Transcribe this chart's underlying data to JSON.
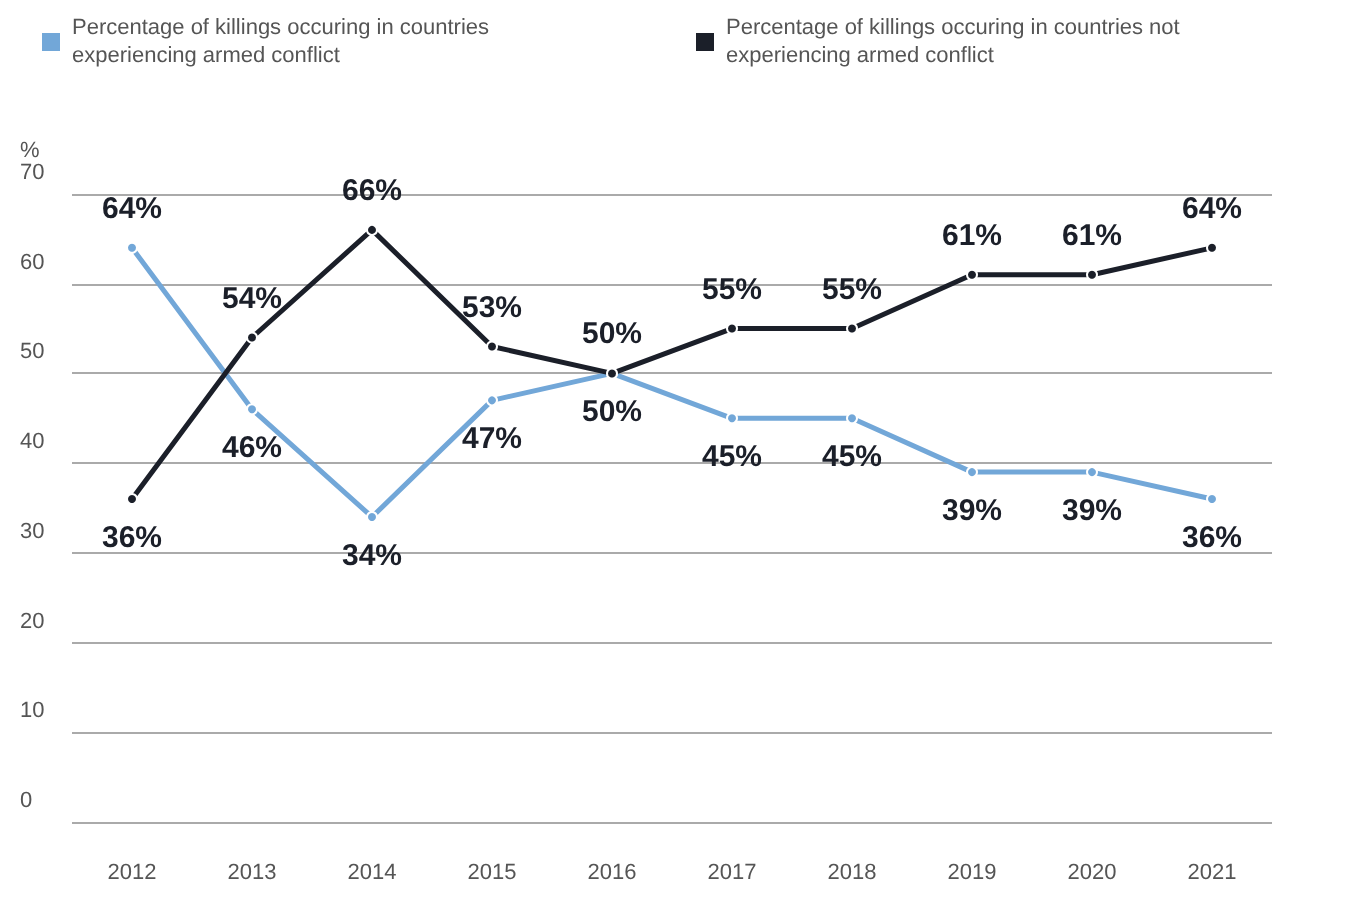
{
  "chart_data": {
    "type": "line",
    "ylabel": "%",
    "categories": [
      "2012",
      "2013",
      "2014",
      "2015",
      "2016",
      "2017",
      "2018",
      "2019",
      "2020",
      "2021"
    ],
    "series": [
      {
        "name": "Percentage of killings occuring in countries experiencing armed conflict",
        "color": "#72a7d8",
        "values": [
          64,
          46,
          34,
          47,
          50,
          45,
          45,
          39,
          39,
          36
        ],
        "value_labels": [
          "64%",
          "46%",
          "34%",
          "47%",
          "50%",
          "45%",
          "45%",
          "39%",
          "39%",
          "36%"
        ]
      },
      {
        "name": "Percentage of killings occuring in countries not experiencing armed conflict",
        "color": "#1b1f29",
        "values": [
          36,
          54,
          66,
          53,
          50,
          55,
          55,
          61,
          61,
          64
        ],
        "value_labels": [
          "36%",
          "54%",
          "66%",
          "53%",
          "50%",
          "55%",
          "55%",
          "61%",
          "61%",
          "64%"
        ]
      }
    ],
    "ylim": [
      0,
      70
    ],
    "yticks": [
      0,
      10,
      20,
      30,
      40,
      50,
      60,
      70
    ],
    "grid": "y",
    "legend": "top left",
    "marker": "circle",
    "line_style": "solid"
  }
}
